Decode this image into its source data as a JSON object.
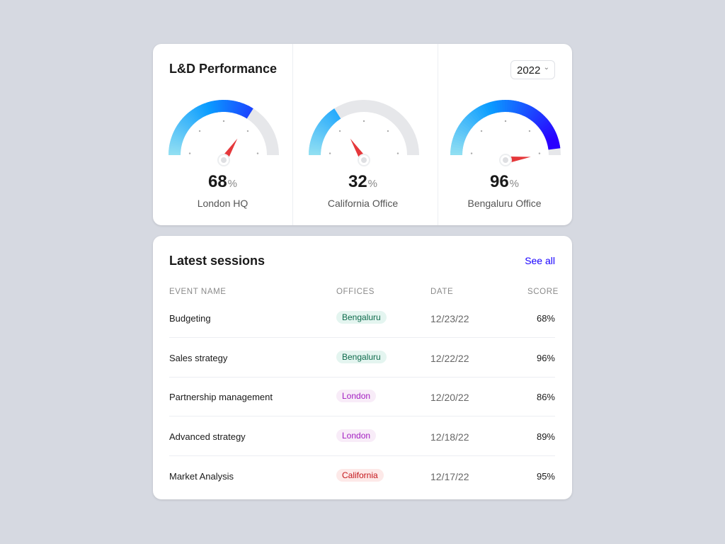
{
  "performance": {
    "title": "L&D Performance",
    "year": "2022",
    "gauges": [
      {
        "value": 68,
        "unit": "%",
        "label": "London HQ"
      },
      {
        "value": 32,
        "unit": "%",
        "label": "California Office"
      },
      {
        "value": 96,
        "unit": "%",
        "label": "Bengaluru Office"
      }
    ],
    "colors": {
      "start": "#93e0f2",
      "mid": "#0a9cff",
      "end": "#2a00ff",
      "track": "#e6e7ea",
      "needle": "#e5383b"
    }
  },
  "sessions": {
    "title": "Latest sessions",
    "see_all": "See all",
    "columns": [
      "EVENT NAME",
      "OFFICES",
      "DATE",
      "SCORE"
    ],
    "rows": [
      {
        "event": "Budgeting",
        "office": "Bengaluru",
        "date": "12/23/22",
        "score": "68%"
      },
      {
        "event": "Sales strategy",
        "office": "Bengaluru",
        "date": "12/22/22",
        "score": "96%"
      },
      {
        "event": "Partnership management",
        "office": "London",
        "date": "12/20/22",
        "score": "86%"
      },
      {
        "event": "Advanced strategy",
        "office": "London",
        "date": "12/18/22",
        "score": "89%"
      },
      {
        "event": "Market Analysis",
        "office": "California",
        "date": "12/17/22",
        "score": "95%"
      }
    ],
    "office_colors": {
      "Bengaluru": {
        "bg": "#e4f5f0",
        "fg": "#0e6b4c"
      },
      "London": {
        "bg": "#f8ecf8",
        "fg": "#a21cc0"
      },
      "California": {
        "bg": "#fde9e8",
        "fg": "#c4161b"
      }
    }
  }
}
